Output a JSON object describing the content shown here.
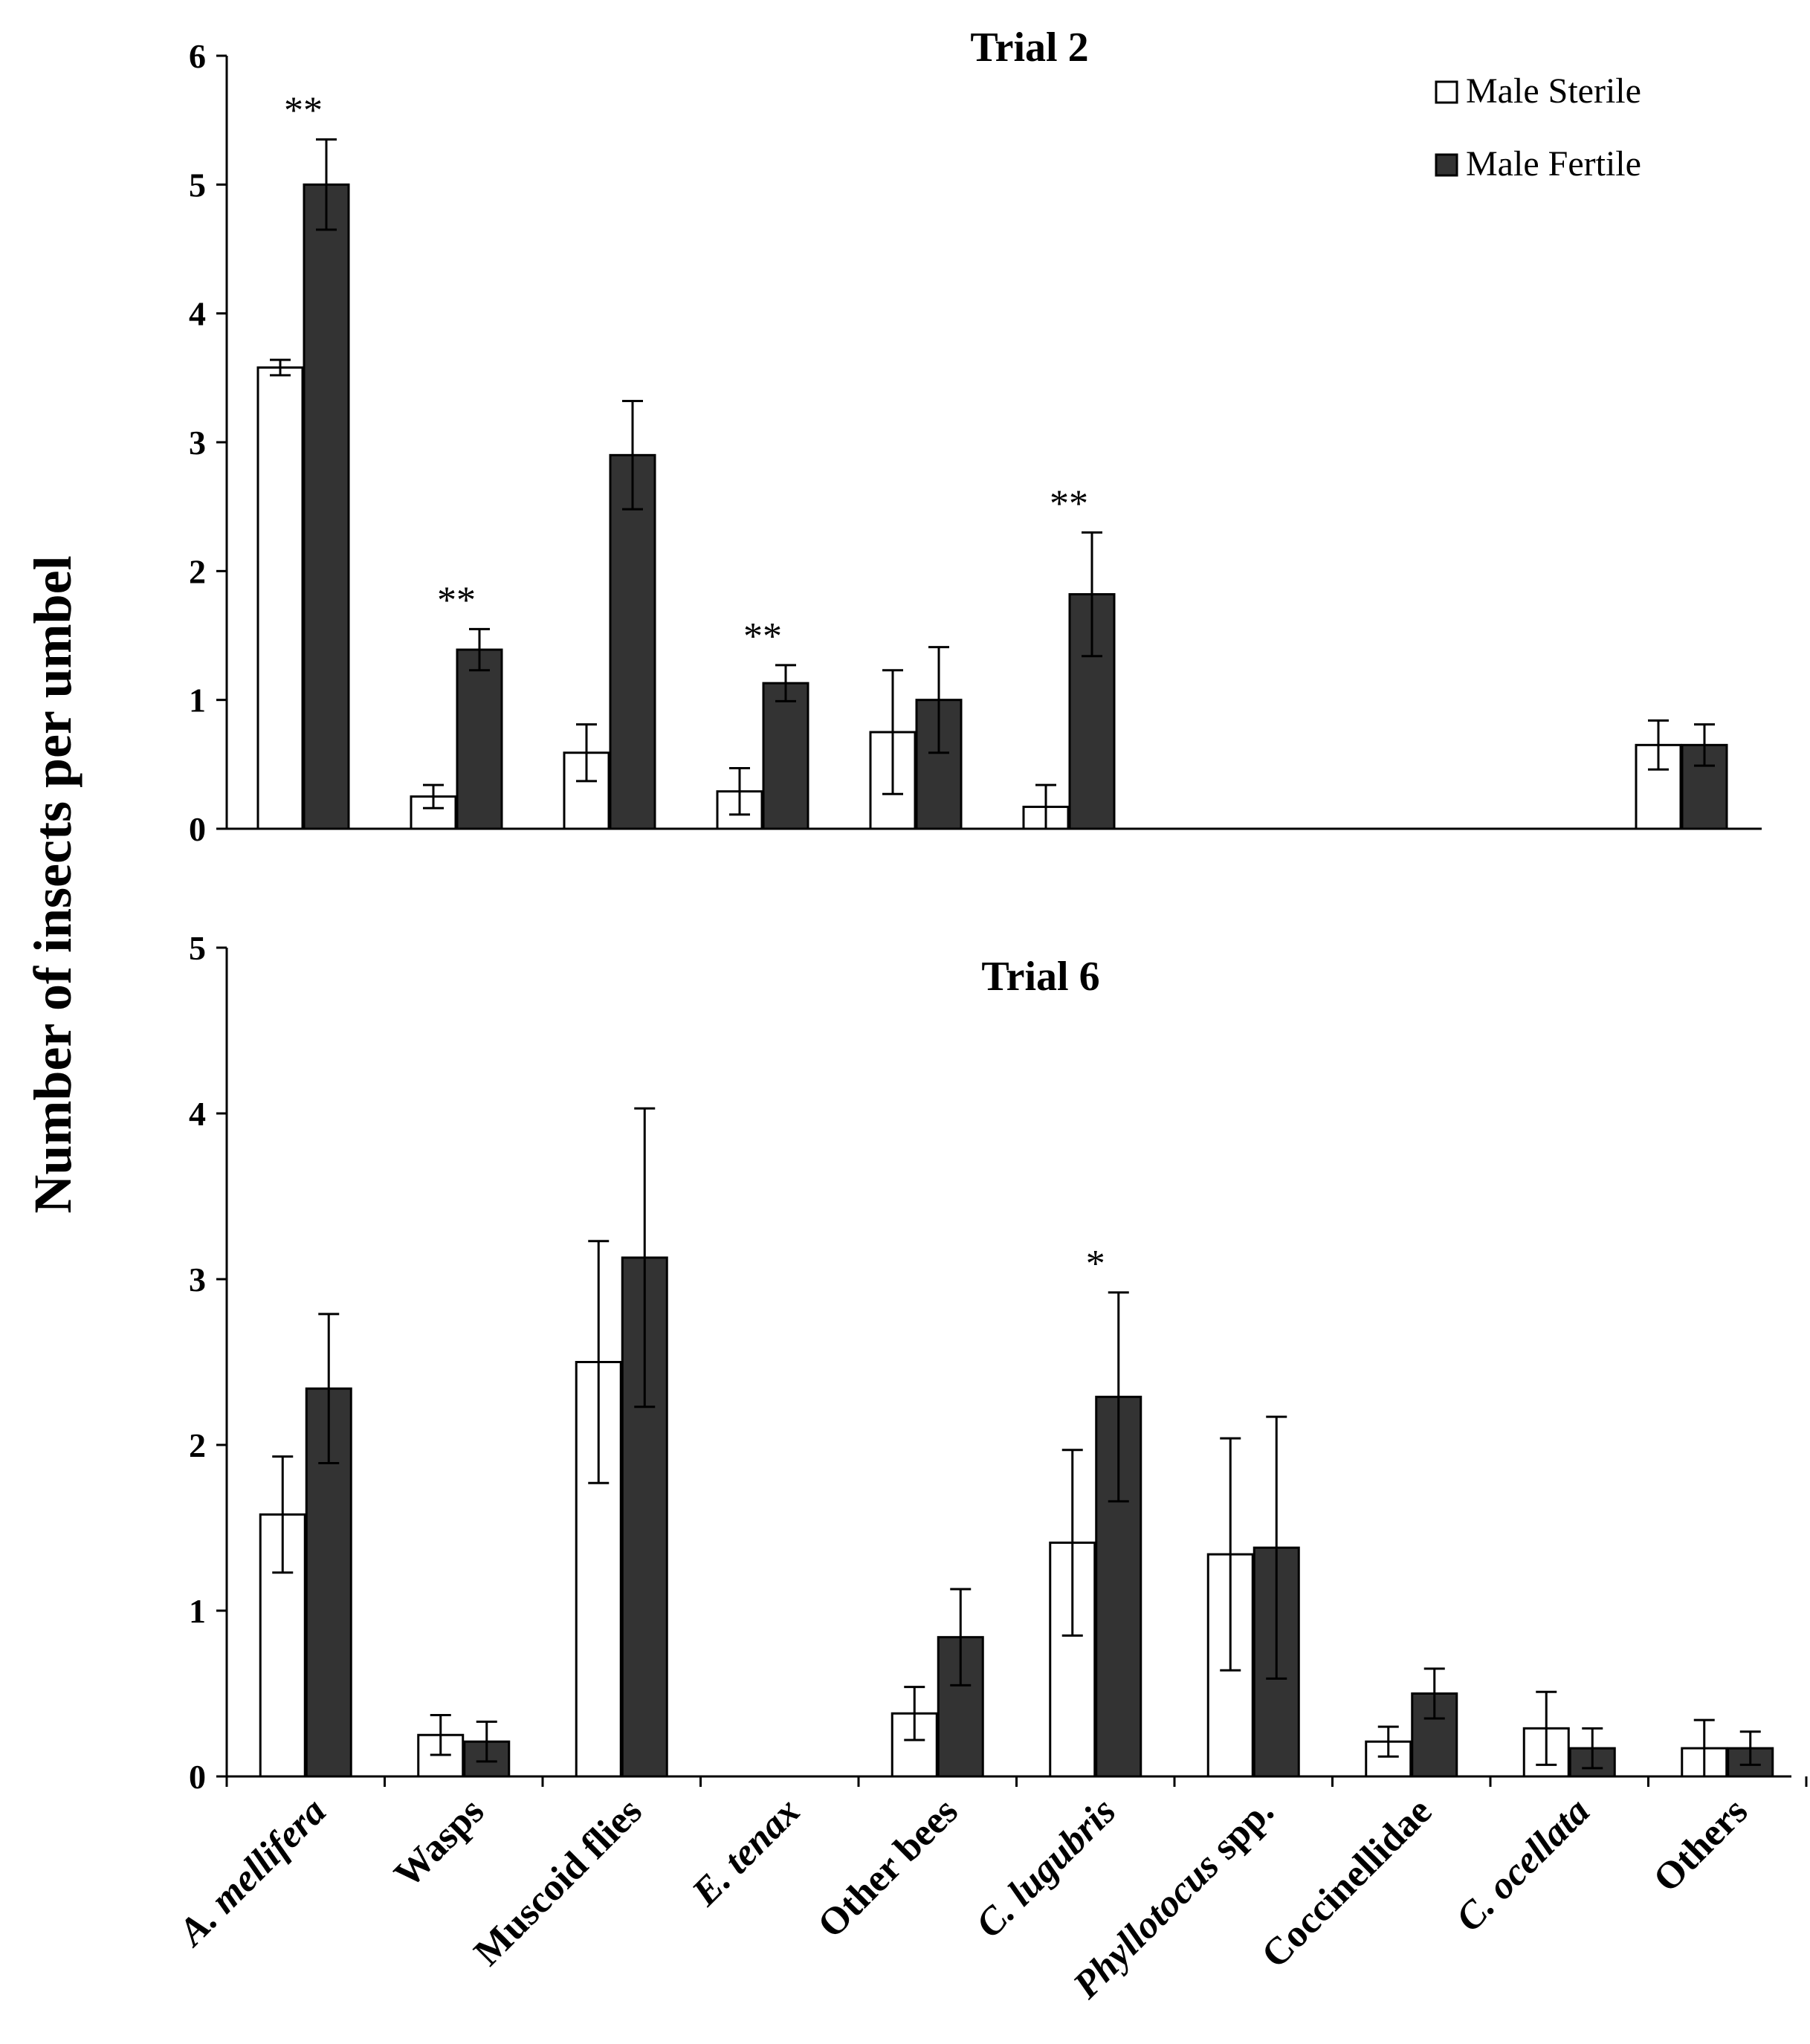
{
  "y_axis_label": "Number of insects per umbel",
  "legend": {
    "position": "top-right",
    "items": [
      {
        "name": "Male Sterile",
        "fill": "#ffffff"
      },
      {
        "name": "Male Fertile",
        "fill": "#333333"
      }
    ]
  },
  "colors": {
    "male_sterile": "#ffffff",
    "male_fertile": "#333333",
    "outline": "#000000"
  },
  "chart_data": [
    {
      "type": "bar",
      "title": "Trial 2",
      "xlabel": "",
      "ylabel": "Number of insects per umbel",
      "ylim": [
        0,
        6
      ],
      "yticks": [
        "0",
        "1",
        "2",
        "3",
        "4",
        "5",
        "6"
      ],
      "categories": [
        "A. mellifera",
        "Wasps",
        "Muscoid flies",
        "E. tenax",
        "Other bees",
        "C. lugubris",
        "Phyllotocus spp.",
        "Coccinellidae",
        "C. ocellata",
        "Others"
      ],
      "series": [
        {
          "name": "Male Sterile",
          "values": [
            3.58,
            0.25,
            0.59,
            0.29,
            0.75,
            0.17,
            null,
            null,
            null,
            0.65
          ],
          "err": [
            0.06,
            0.09,
            0.22,
            0.18,
            0.48,
            0.17,
            null,
            null,
            null,
            0.19
          ]
        },
        {
          "name": "Male Fertile",
          "values": [
            5.0,
            1.39,
            2.9,
            1.13,
            1.0,
            1.82,
            null,
            null,
            null,
            0.65
          ],
          "err": [
            0.35,
            0.16,
            0.42,
            0.14,
            0.41,
            0.48,
            null,
            null,
            null,
            0.16
          ]
        }
      ],
      "annotations": [
        {
          "category": "A. mellifera",
          "text": "**"
        },
        {
          "category": "Wasps",
          "text": "**"
        },
        {
          "category": "E. tenax",
          "text": "**"
        },
        {
          "category": "C. lugubris",
          "text": "**"
        }
      ]
    },
    {
      "type": "bar",
      "title": "Trial 6",
      "xlabel": "",
      "ylabel": "Number of insects per umbel",
      "ylim": [
        0,
        5
      ],
      "yticks": [
        "0",
        "1",
        "2",
        "3",
        "4",
        "5"
      ],
      "categories": [
        "A. mellifera",
        "Wasps",
        "Muscoid flies",
        "E. tenax",
        "Other bees",
        "C. lugubris",
        "Phyllotocus spp.",
        "Coccinellidae",
        "C. ocellata",
        "Others"
      ],
      "series": [
        {
          "name": "Male Sterile",
          "values": [
            1.58,
            0.25,
            2.5,
            null,
            0.38,
            1.41,
            1.34,
            0.21,
            0.29,
            0.17
          ],
          "err": [
            0.35,
            0.12,
            0.73,
            null,
            0.16,
            0.56,
            0.7,
            0.09,
            0.22,
            0.17
          ]
        },
        {
          "name": "Male Fertile",
          "values": [
            2.34,
            0.21,
            3.13,
            null,
            0.84,
            2.29,
            1.38,
            0.5,
            0.17,
            0.17
          ],
          "err": [
            0.45,
            0.12,
            0.9,
            null,
            0.29,
            0.63,
            0.79,
            0.15,
            0.12,
            0.1
          ]
        }
      ],
      "annotations": [
        {
          "category": "C. lugubris",
          "text": "*"
        }
      ]
    }
  ],
  "x_tick_labels": [
    {
      "parts": [
        {
          "text": "A. mellifera",
          "italic": true
        }
      ]
    },
    {
      "parts": [
        {
          "text": "Wasps",
          "italic": false
        }
      ]
    },
    {
      "parts": [
        {
          "text": "Muscoid flies",
          "italic": false
        }
      ]
    },
    {
      "parts": [
        {
          "text": "E. tenax",
          "italic": true
        }
      ]
    },
    {
      "parts": [
        {
          "text": "Other bees",
          "italic": false
        }
      ]
    },
    {
      "parts": [
        {
          "text": "C. lugubris",
          "italic": true
        }
      ]
    },
    {
      "parts": [
        {
          "text": "Phyllotocus",
          "italic": true
        },
        {
          "text": " spp.",
          "italic": false
        }
      ]
    },
    {
      "parts": [
        {
          "text": "Coccinellidae",
          "italic": false
        }
      ]
    },
    {
      "parts": [
        {
          "text": "C. ocellata",
          "italic": true
        }
      ]
    },
    {
      "parts": [
        {
          "text": "Others",
          "italic": false
        }
      ]
    }
  ]
}
